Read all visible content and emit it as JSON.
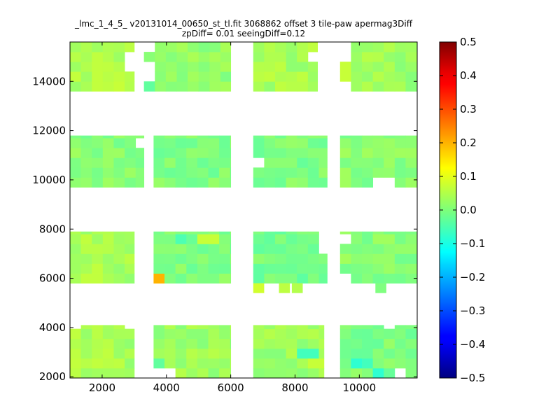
{
  "chart_data": {
    "type": "heatmap",
    "title": "_lmc_1_4_5_ v20131014_00650_st_tl.fit 3068862 offset 3 tile-paw apermag3Diff",
    "subtitle": "zpDiff= 0.01 seeingDiff=0.12",
    "xlabel": "",
    "ylabel": "",
    "xlim": [
      1000,
      11800
    ],
    "ylim": [
      1950,
      15600
    ],
    "x_ticks": [
      2000,
      4000,
      6000,
      8000,
      10000
    ],
    "y_ticks": [
      2000,
      4000,
      6000,
      8000,
      10000,
      12000,
      14000
    ],
    "x_tick_labels": [
      "2000",
      "4000",
      "6000",
      "8000",
      "10000"
    ],
    "y_tick_labels": [
      "2000",
      "4000",
      "6000",
      "8000",
      "10000",
      "12000",
      "14000"
    ],
    "colorbar": {
      "colormap": "jet",
      "range": [
        -0.5,
        0.5
      ],
      "ticks": [
        0.5,
        0.4,
        0.3,
        0.2,
        0.1,
        0.0,
        -0.1,
        -0.2,
        -0.3,
        -0.4,
        -0.5
      ],
      "tick_labels": [
        "0.5",
        "0.4",
        "0.3",
        "0.2",
        "0.1",
        "0.0",
        "−0.1",
        "−0.2",
        "−0.3",
        "−0.4",
        "−0.5"
      ]
    },
    "grid": false,
    "cell_size": [
      340,
      400
    ],
    "detectors": [
      {
        "x": [
          1000,
          3000
        ],
        "y": [
          13600,
          15600
        ],
        "value": 0.05
      },
      {
        "x": [
          3300,
          6000
        ],
        "y": [
          13600,
          15600
        ],
        "value": 0.02
      },
      {
        "x": [
          6700,
          8700
        ],
        "y": [
          13600,
          15600
        ],
        "value": 0.04
      },
      {
        "x": [
          9400,
          11800
        ],
        "y": [
          13600,
          15600
        ],
        "value": 0.03
      },
      {
        "x": [
          1000,
          3300
        ],
        "y": [
          9700,
          11800
        ],
        "value": 0.01
      },
      {
        "x": [
          3600,
          6000
        ],
        "y": [
          9700,
          11800
        ],
        "value": 0.0
      },
      {
        "x": [
          6700,
          9000
        ],
        "y": [
          9700,
          11800
        ],
        "value": 0.0
      },
      {
        "x": [
          9400,
          11800
        ],
        "y": [
          9700,
          11800
        ],
        "value": 0.01
      },
      {
        "x": [
          1000,
          3000
        ],
        "y": [
          5800,
          7900
        ],
        "value": 0.04
      },
      {
        "x": [
          3600,
          6000
        ],
        "y": [
          5800,
          7900
        ],
        "value": 0.0
      },
      {
        "x": [
          6700,
          9000
        ],
        "y": [
          5800,
          7900
        ],
        "value": -0.01
      },
      {
        "x": [
          9400,
          11800
        ],
        "y": [
          5800,
          7900
        ],
        "value": 0.01
      },
      {
        "x": [
          1000,
          3000
        ],
        "y": [
          1950,
          4100
        ],
        "value": 0.04
      },
      {
        "x": [
          3600,
          6000
        ],
        "y": [
          1950,
          4100
        ],
        "value": 0.03
      },
      {
        "x": [
          6700,
          8900
        ],
        "y": [
          1950,
          4100
        ],
        "value": 0.03
      },
      {
        "x": [
          9400,
          11800
        ],
        "y": [
          1950,
          4100
        ],
        "value": 0.0
      }
    ],
    "cell_overrides": [
      {
        "x": 3700,
        "y": 5800,
        "value": 0.2
      },
      {
        "x": 6700,
        "y": 5400,
        "value": 0.08
      },
      {
        "x": 7500,
        "y": 5400,
        "value": 0.06
      },
      {
        "x": 7900,
        "y": 5400,
        "value": 0.05
      },
      {
        "x": 10500,
        "y": 5400,
        "value": 0.0
      },
      {
        "x": 9400,
        "y": 14200,
        "value": 0.07
      },
      {
        "x": 3300,
        "y": 13600,
        "value": -0.03
      },
      {
        "x": 3300,
        "y": 11400,
        "value": 0.07
      },
      {
        "x": 3700,
        "y": 2400,
        "value": -0.03
      },
      {
        "x": 4400,
        "y": 7400,
        "value": -0.05
      },
      {
        "x": 5100,
        "y": 7400,
        "value": 0.07
      },
      {
        "x": 9700,
        "y": 2400,
        "value": -0.08
      },
      {
        "x": 10000,
        "y": 2400,
        "value": -0.06
      },
      {
        "x": 10400,
        "y": 2000,
        "value": -0.08
      },
      {
        "x": 8200,
        "y": 2800,
        "value": -0.06
      },
      {
        "x": 8600,
        "y": 2400,
        "value": 0.07
      }
    ],
    "missing_cells": [
      {
        "x": 2600,
        "y": 14800
      },
      {
        "x": 2600,
        "y": 14400
      },
      {
        "x": 3300,
        "y": 15200
      },
      {
        "x": 3300,
        "y": 14400
      },
      {
        "x": 3300,
        "y": 14000
      },
      {
        "x": 8400,
        "y": 14800
      },
      {
        "x": 9400,
        "y": 15200
      },
      {
        "x": 9400,
        "y": 14800
      },
      {
        "x": 9400,
        "y": 13600
      },
      {
        "x": 3000,
        "y": 11400
      },
      {
        "x": 6700,
        "y": 10600
      },
      {
        "x": 10600,
        "y": 9700
      },
      {
        "x": 8700,
        "y": 6900
      },
      {
        "x": 8700,
        "y": 7300
      },
      {
        "x": 8700,
        "y": 7700
      },
      {
        "x": 9400,
        "y": 7500
      },
      {
        "x": 9400,
        "y": 5800
      },
      {
        "x": 1000,
        "y": 3800
      },
      {
        "x": 2700,
        "y": 3800
      },
      {
        "x": 10800,
        "y": 3800
      },
      {
        "x": 3600,
        "y": 1950
      },
      {
        "x": 4000,
        "y": 1950
      },
      {
        "x": 11000,
        "y": 1950
      }
    ]
  }
}
